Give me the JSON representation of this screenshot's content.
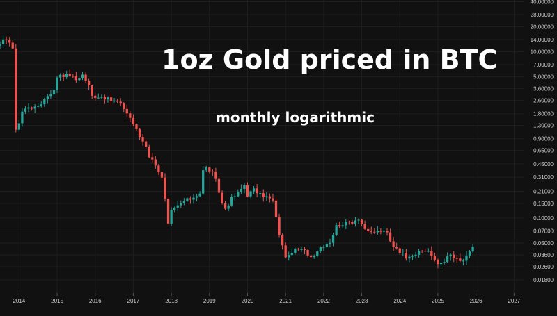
{
  "chart_data": {
    "type": "candlestick",
    "title": "1oz Gold priced in BTC",
    "subtitle": "monthly logarithmic",
    "y_scale": "log",
    "ylim": [
      0.0125,
      42
    ],
    "xlim": [
      2013.5,
      2027.25
    ],
    "x_ticks": [
      "2014",
      "2015",
      "2016",
      "2017",
      "2018",
      "2019",
      "2020",
      "2021",
      "2022",
      "2023",
      "2024",
      "2025",
      "2026",
      "2027"
    ],
    "y_ticks": [
      "40.00000",
      "28.00000",
      "20.00000",
      "14.00000",
      "10.00000",
      "7.00000",
      "5.00000",
      "3.60000",
      "2.60000",
      "1.80000",
      "1.30000",
      "0.90000",
      "0.65000",
      "0.45000",
      "0.31000",
      "0.21000",
      "0.15000",
      "0.10000",
      "0.07000",
      "0.05000",
      "0.03600",
      "0.02600",
      "0.01800"
    ],
    "grid": true,
    "colors": {
      "up": "#26a69a",
      "down": "#ef5350",
      "background": "#111111",
      "grid": "#1e1e1e",
      "tick_label": "#cccccc",
      "title": "#ffffff"
    },
    "anchors": [
      [
        2013.5,
        12.0
      ],
      [
        2013.58,
        13.5
      ],
      [
        2013.67,
        14.5
      ],
      [
        2013.75,
        13.0
      ],
      [
        2013.83,
        11.5
      ],
      [
        2013.92,
        1.1
      ],
      [
        2014.0,
        1.4
      ],
      [
        2014.08,
        1.9
      ],
      [
        2014.25,
        2.2
      ],
      [
        2014.42,
        2.1
      ],
      [
        2014.58,
        2.4
      ],
      [
        2014.75,
        3.0
      ],
      [
        2014.92,
        3.4
      ],
      [
        2015.0,
        5.0
      ],
      [
        2015.08,
        5.4
      ],
      [
        2015.17,
        5.2
      ],
      [
        2015.33,
        5.3
      ],
      [
        2015.5,
        4.6
      ],
      [
        2015.67,
        5.3
      ],
      [
        2015.83,
        3.9
      ],
      [
        2015.92,
        2.9
      ],
      [
        2016.17,
        2.9
      ],
      [
        2016.42,
        2.6
      ],
      [
        2016.58,
        2.5
      ],
      [
        2016.75,
        2.1
      ],
      [
        2016.92,
        1.6
      ],
      [
        2017.08,
        1.15
      ],
      [
        2017.17,
        0.95
      ],
      [
        2017.33,
        0.75
      ],
      [
        2017.42,
        0.55
      ],
      [
        2017.58,
        0.45
      ],
      [
        2017.75,
        0.3
      ],
      [
        2017.83,
        0.17
      ],
      [
        2017.92,
        0.08
      ],
      [
        2018.0,
        0.12
      ],
      [
        2018.17,
        0.14
      ],
      [
        2018.33,
        0.16
      ],
      [
        2018.5,
        0.17
      ],
      [
        2018.75,
        0.2
      ],
      [
        2018.83,
        0.37
      ],
      [
        2018.92,
        0.4
      ],
      [
        2019.08,
        0.35
      ],
      [
        2019.17,
        0.28
      ],
      [
        2019.33,
        0.15
      ],
      [
        2019.42,
        0.13
      ],
      [
        2019.58,
        0.17
      ],
      [
        2019.75,
        0.2
      ],
      [
        2019.92,
        0.25
      ],
      [
        2020.0,
        0.19
      ],
      [
        2020.17,
        0.22
      ],
      [
        2020.33,
        0.19
      ],
      [
        2020.5,
        0.18
      ],
      [
        2020.67,
        0.16
      ],
      [
        2020.75,
        0.1
      ],
      [
        2020.83,
        0.065
      ],
      [
        2020.92,
        0.045
      ],
      [
        2021.0,
        0.035
      ],
      [
        2021.08,
        0.034
      ],
      [
        2021.17,
        0.04
      ],
      [
        2021.33,
        0.042
      ],
      [
        2021.5,
        0.04
      ],
      [
        2021.67,
        0.034
      ],
      [
        2021.75,
        0.037
      ],
      [
        2021.92,
        0.045
      ],
      [
        2022.17,
        0.052
      ],
      [
        2022.33,
        0.08
      ],
      [
        2022.5,
        0.085
      ],
      [
        2022.75,
        0.09
      ],
      [
        2022.92,
        0.1
      ],
      [
        2023.0,
        0.085
      ],
      [
        2023.08,
        0.075
      ],
      [
        2023.17,
        0.066
      ],
      [
        2023.33,
        0.068
      ],
      [
        2023.5,
        0.07
      ],
      [
        2023.67,
        0.066
      ],
      [
        2023.75,
        0.052
      ],
      [
        2023.83,
        0.046
      ],
      [
        2023.92,
        0.044
      ],
      [
        2024.0,
        0.04
      ],
      [
        2024.17,
        0.034
      ],
      [
        2024.25,
        0.036
      ],
      [
        2024.42,
        0.037
      ],
      [
        2024.58,
        0.04
      ],
      [
        2024.75,
        0.041
      ],
      [
        2024.92,
        0.03
      ],
      [
        2025.0,
        0.028
      ],
      [
        2025.17,
        0.031
      ],
      [
        2025.33,
        0.036
      ],
      [
        2025.42,
        0.033
      ],
      [
        2025.58,
        0.03
      ],
      [
        2025.67,
        0.031
      ],
      [
        2025.75,
        0.034
      ],
      [
        2025.83,
        0.038
      ],
      [
        2025.92,
        0.046
      ]
    ]
  }
}
